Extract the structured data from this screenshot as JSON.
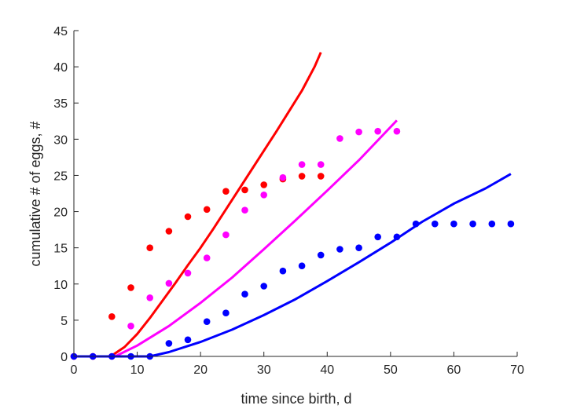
{
  "chart_data": {
    "type": "scatter",
    "xlabel": "time since birth, d",
    "ylabel": "cumulative # of eggs, #",
    "xlim": [
      0,
      70
    ],
    "ylim": [
      0,
      45
    ],
    "xticks": [
      0,
      10,
      20,
      30,
      40,
      50,
      60,
      70
    ],
    "yticks": [
      0,
      5,
      10,
      15,
      20,
      25,
      30,
      35,
      40,
      45
    ],
    "grid": false,
    "legend": "none",
    "series": [
      {
        "color": "#ff0000",
        "points": {
          "x": [
            0,
            3,
            6,
            9,
            12,
            15,
            18,
            21,
            24,
            27,
            30,
            33,
            36,
            39
          ],
          "y": [
            0,
            0,
            5.5,
            9.5,
            15,
            17.3,
            19.3,
            20.3,
            22.8,
            23,
            23.7,
            24.5,
            24.9,
            24.9
          ]
        },
        "fit": {
          "x": [
            0,
            5.8,
            8,
            10,
            12,
            14,
            16,
            18,
            20,
            22,
            24,
            26,
            28,
            30,
            32,
            34,
            36,
            38,
            39
          ],
          "y": [
            0,
            0,
            1.3,
            3.1,
            5.3,
            7.7,
            10.1,
            12.6,
            15,
            17.6,
            20.3,
            23,
            25.7,
            28.4,
            31.1,
            33.9,
            36.7,
            40,
            42
          ]
        }
      },
      {
        "color": "#ff00ff",
        "points": {
          "x": [
            0,
            3,
            6,
            9,
            12,
            15,
            18,
            21,
            24,
            27,
            30,
            33,
            36,
            39,
            42,
            45,
            48,
            51
          ],
          "y": [
            0,
            0,
            0,
            4.2,
            8.1,
            10.1,
            11.5,
            13.6,
            16.8,
            20.2,
            22.3,
            24.7,
            26.5,
            26.5,
            30.1,
            31,
            31.1,
            31.1
          ]
        },
        "fit": {
          "x": [
            0,
            6.5,
            10,
            15,
            20,
            25,
            30,
            35,
            40,
            45,
            51
          ],
          "y": [
            0,
            0,
            1.5,
            4.2,
            7.4,
            10.9,
            14.8,
            18.8,
            22.9,
            27.1,
            32.6
          ]
        }
      },
      {
        "color": "#0000ff",
        "points": {
          "x": [
            0,
            3,
            6,
            9,
            12,
            15,
            18,
            21,
            24,
            27,
            30,
            33,
            36,
            39,
            42,
            45,
            48,
            51,
            54,
            57,
            60,
            63,
            66,
            69
          ],
          "y": [
            0,
            0,
            0,
            0,
            0,
            1.8,
            2.3,
            4.8,
            6,
            8.6,
            9.7,
            11.8,
            12.5,
            14,
            14.8,
            15,
            16.5,
            16.5,
            18.3,
            18.3,
            18.3,
            18.3,
            18.3,
            18.3
          ]
        },
        "fit": {
          "x": [
            0,
            12,
            15,
            20,
            25,
            30,
            35,
            40,
            45,
            50,
            55,
            60,
            65,
            69
          ],
          "y": [
            0,
            0,
            0.6,
            2,
            3.7,
            5.7,
            7.9,
            10.4,
            13,
            15.7,
            18.6,
            21.1,
            23.2,
            25.2
          ]
        }
      }
    ]
  }
}
